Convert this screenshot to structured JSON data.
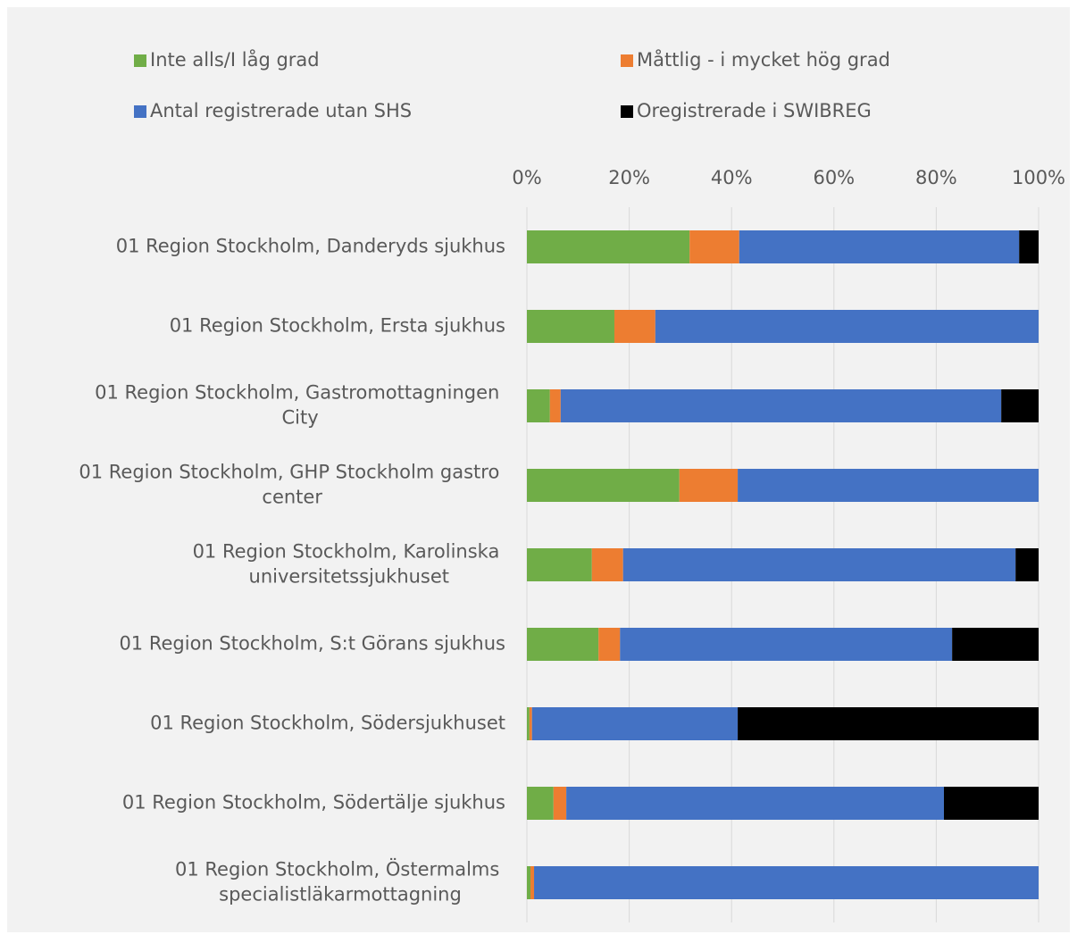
{
  "chart_data": {
    "type": "stacked_bar_horizontal",
    "categories": [
      "01 Region Stockholm, Danderyds sjukhus",
      "01 Region Stockholm, Ersta sjukhus",
      "01 Region Stockholm, Gastromottagningen City",
      "01 Region Stockholm, GHP Stockholm gastro center",
      "01 Region Stockholm, Karolinska universitetssjukhuset",
      "01 Region Stockholm, S:t Görans sjukhus",
      "01 Region Stockholm, Södersjukhuset",
      "01 Region Stockholm, Södertälje sjukhus",
      "01 Region Stockholm, Östermalms specialistläkarmottagning"
    ],
    "series": [
      {
        "name": "Inte alls/I låg grad",
        "color": "#70ad47",
        "values": [
          31.8,
          17.1,
          4.5,
          29.8,
          12.7,
          14.0,
          0.5,
          5.2,
          0.7
        ]
      },
      {
        "name": "Måttlig - i mycket hög grad",
        "color": "#ed7d31",
        "values": [
          9.7,
          8.0,
          2.1,
          11.4,
          6.1,
          4.2,
          0.5,
          2.5,
          0.7
        ]
      },
      {
        "name": "Antal registrerade utan SHS",
        "color": "#4472c4",
        "values": [
          54.7,
          74.9,
          86.1,
          58.8,
          76.7,
          64.9,
          40.2,
          73.8,
          98.6
        ]
      },
      {
        "name": "Oregistrerade i SWIBREG",
        "color": "#000000",
        "values": [
          3.8,
          0,
          7.3,
          0,
          4.5,
          16.9,
          58.8,
          18.5,
          0
        ]
      }
    ],
    "xlim": [
      0,
      100
    ],
    "xticks": [
      {
        "value": 0,
        "label": "0%"
      },
      {
        "value": 20,
        "label": "20%"
      },
      {
        "value": 40,
        "label": "40%"
      },
      {
        "value": 60,
        "label": "60%"
      },
      {
        "value": 80,
        "label": "80%"
      },
      {
        "value": 100,
        "label": "100%"
      }
    ],
    "grid": true,
    "legend": "top"
  }
}
